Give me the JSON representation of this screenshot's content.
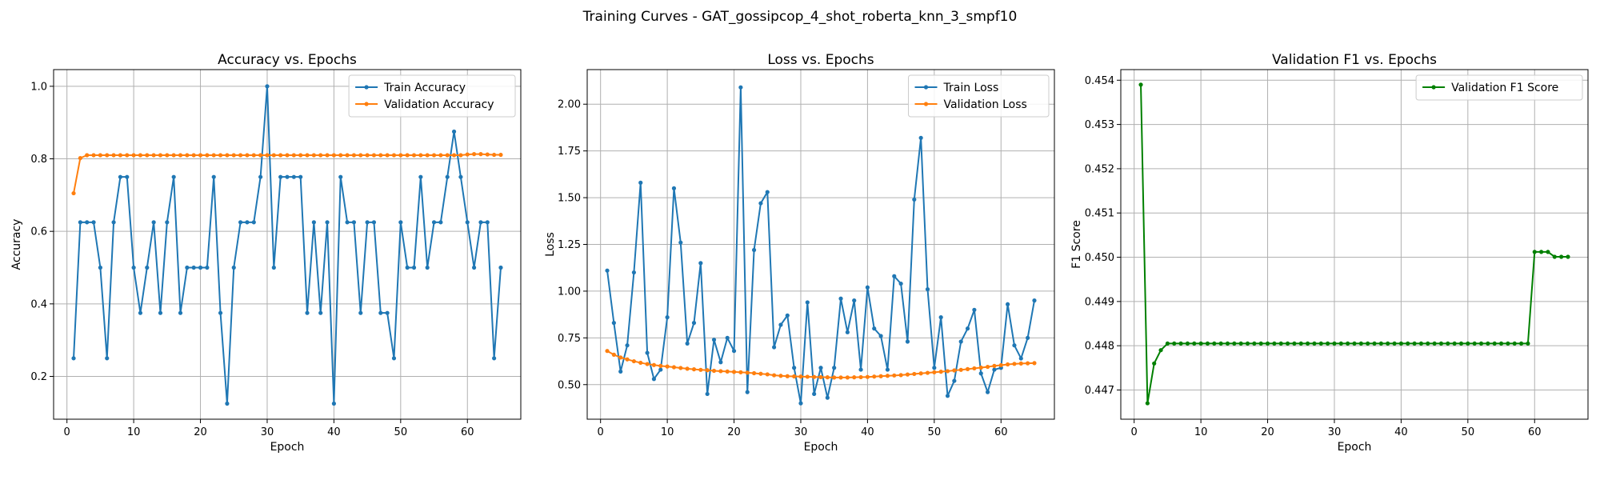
{
  "figure": {
    "title": "Training Curves - GAT_gossipcop_4_shot_roberta_knn_3_smpf10"
  },
  "chart_data": [
    {
      "type": "line",
      "title": "Accuracy vs. Epochs",
      "xlabel": "Epoch",
      "ylabel": "Accuracy",
      "xlim": [
        -2,
        68
      ],
      "ylim": [
        0.082,
        1.046
      ],
      "xticks": [
        0,
        10,
        20,
        30,
        40,
        50,
        60
      ],
      "yticks": [
        0.2,
        0.4,
        0.6,
        0.8,
        1.0
      ],
      "ytick_labels": [
        "0.2",
        "0.4",
        "0.6",
        "0.8",
        "1.0"
      ],
      "grid": true,
      "legend": "top-right",
      "series": [
        {
          "name": "Train Accuracy",
          "color": "#1f77b4",
          "x": [
            1,
            2,
            3,
            4,
            5,
            6,
            7,
            8,
            9,
            10,
            11,
            12,
            13,
            14,
            15,
            16,
            17,
            18,
            19,
            20,
            21,
            22,
            23,
            24,
            25,
            26,
            27,
            28,
            29,
            30,
            31,
            32,
            33,
            34,
            35,
            36,
            37,
            38,
            39,
            40,
            41,
            42,
            43,
            44,
            45,
            46,
            47,
            48,
            49,
            50,
            51,
            52,
            53,
            54,
            55,
            56,
            57,
            58,
            59,
            60,
            61,
            62,
            63,
            64,
            65
          ],
          "values": [
            0.25,
            0.625,
            0.625,
            0.625,
            0.5,
            0.25,
            0.625,
            0.75,
            0.75,
            0.5,
            0.375,
            0.5,
            0.625,
            0.375,
            0.625,
            0.75,
            0.375,
            0.5,
            0.5,
            0.5,
            0.5,
            0.75,
            0.375,
            0.125,
            0.5,
            0.625,
            0.625,
            0.625,
            0.75,
            1.0,
            0.5,
            0.75,
            0.75,
            0.75,
            0.75,
            0.375,
            0.625,
            0.375,
            0.625,
            0.125,
            0.75,
            0.625,
            0.625,
            0.375,
            0.625,
            0.625,
            0.375,
            0.375,
            0.25,
            0.625,
            0.5,
            0.5,
            0.75,
            0.5,
            0.625,
            0.625,
            0.75,
            0.875,
            0.75,
            0.625,
            0.5,
            0.625,
            0.625,
            0.25,
            0.5
          ]
        },
        {
          "name": "Validation Accuracy",
          "color": "#ff7f0e",
          "x": [
            1,
            2,
            3,
            4,
            5,
            6,
            7,
            8,
            9,
            10,
            11,
            12,
            13,
            14,
            15,
            16,
            17,
            18,
            19,
            20,
            21,
            22,
            23,
            24,
            25,
            26,
            27,
            28,
            29,
            30,
            31,
            32,
            33,
            34,
            35,
            36,
            37,
            38,
            39,
            40,
            41,
            42,
            43,
            44,
            45,
            46,
            47,
            48,
            49,
            50,
            51,
            52,
            53,
            54,
            55,
            56,
            57,
            58,
            59,
            60,
            61,
            62,
            63,
            64,
            65
          ],
          "values": [
            0.705,
            0.802,
            0.81,
            0.81,
            0.81,
            0.81,
            0.81,
            0.81,
            0.81,
            0.81,
            0.81,
            0.81,
            0.81,
            0.81,
            0.81,
            0.81,
            0.81,
            0.81,
            0.81,
            0.81,
            0.81,
            0.81,
            0.81,
            0.81,
            0.81,
            0.81,
            0.81,
            0.81,
            0.81,
            0.81,
            0.81,
            0.81,
            0.81,
            0.81,
            0.81,
            0.81,
            0.81,
            0.81,
            0.81,
            0.81,
            0.81,
            0.81,
            0.81,
            0.81,
            0.81,
            0.81,
            0.81,
            0.81,
            0.81,
            0.81,
            0.81,
            0.81,
            0.81,
            0.81,
            0.81,
            0.81,
            0.81,
            0.81,
            0.81,
            0.812,
            0.813,
            0.813,
            0.812,
            0.811,
            0.811
          ]
        }
      ]
    },
    {
      "type": "line",
      "title": "Loss vs. Epochs",
      "xlabel": "Epoch",
      "ylabel": "Loss",
      "xlim": [
        -2,
        68
      ],
      "ylim": [
        0.315,
        2.185
      ],
      "xticks": [
        0,
        10,
        20,
        30,
        40,
        50,
        60
      ],
      "yticks": [
        0.5,
        0.75,
        1.0,
        1.25,
        1.5,
        1.75,
        2.0
      ],
      "ytick_labels": [
        "0.50",
        "0.75",
        "1.00",
        "1.25",
        "1.50",
        "1.75",
        "2.00"
      ],
      "grid": true,
      "legend": "top-right",
      "series": [
        {
          "name": "Train Loss",
          "color": "#1f77b4",
          "x": [
            1,
            2,
            3,
            4,
            5,
            6,
            7,
            8,
            9,
            10,
            11,
            12,
            13,
            14,
            15,
            16,
            17,
            18,
            19,
            20,
            21,
            22,
            23,
            24,
            25,
            26,
            27,
            28,
            29,
            30,
            31,
            32,
            33,
            34,
            35,
            36,
            37,
            38,
            39,
            40,
            41,
            42,
            43,
            44,
            45,
            46,
            47,
            48,
            49,
            50,
            51,
            52,
            53,
            54,
            55,
            56,
            57,
            58,
            59,
            60,
            61,
            62,
            63,
            64,
            65
          ],
          "values": [
            1.11,
            0.83,
            0.57,
            0.71,
            1.1,
            1.58,
            0.67,
            0.53,
            0.58,
            0.86,
            1.55,
            1.26,
            0.72,
            0.83,
            1.15,
            0.45,
            0.74,
            0.62,
            0.75,
            0.68,
            2.09,
            0.46,
            1.22,
            1.47,
            1.53,
            0.7,
            0.82,
            0.87,
            0.59,
            0.4,
            0.94,
            0.45,
            0.59,
            0.43,
            0.59,
            0.96,
            0.78,
            0.95,
            0.58,
            1.02,
            0.8,
            0.76,
            0.58,
            1.08,
            1.04,
            0.73,
            1.49,
            1.82,
            1.01,
            0.59,
            0.86,
            0.44,
            0.52,
            0.73,
            0.8,
            0.9,
            0.56,
            0.46,
            0.58,
            0.59,
            0.93,
            0.71,
            0.64,
            0.75,
            0.95
          ]
        },
        {
          "name": "Validation Loss",
          "color": "#ff7f0e",
          "x": [
            1,
            2,
            3,
            4,
            5,
            6,
            7,
            8,
            9,
            10,
            11,
            12,
            13,
            14,
            15,
            16,
            17,
            18,
            19,
            20,
            21,
            22,
            23,
            24,
            25,
            26,
            27,
            28,
            29,
            30,
            31,
            32,
            33,
            34,
            35,
            36,
            37,
            38,
            39,
            40,
            41,
            42,
            43,
            44,
            45,
            46,
            47,
            48,
            49,
            50,
            51,
            52,
            53,
            54,
            55,
            56,
            57,
            58,
            59,
            60,
            61,
            62,
            63,
            64,
            65
          ],
          "values": [
            0.68,
            0.66,
            0.645,
            0.635,
            0.625,
            0.617,
            0.61,
            0.605,
            0.6,
            0.597,
            0.593,
            0.589,
            0.585,
            0.582,
            0.579,
            0.577,
            0.574,
            0.572,
            0.57,
            0.568,
            0.566,
            0.564,
            0.561,
            0.558,
            0.555,
            0.55,
            0.547,
            0.545,
            0.544,
            0.543,
            0.542,
            0.541,
            0.54,
            0.539,
            0.538,
            0.538,
            0.538,
            0.539,
            0.54,
            0.541,
            0.543,
            0.545,
            0.547,
            0.549,
            0.551,
            0.554,
            0.557,
            0.56,
            0.563,
            0.566,
            0.569,
            0.572,
            0.576,
            0.579,
            0.583,
            0.587,
            0.591,
            0.595,
            0.6,
            0.604,
            0.608,
            0.611,
            0.613,
            0.614,
            0.615
          ]
        }
      ]
    },
    {
      "type": "line",
      "title": "Validation F1 vs. Epochs",
      "xlabel": "Epoch",
      "ylabel": "F1 Score",
      "xlim": [
        -2,
        68
      ],
      "ylim": [
        0.44634,
        0.45424
      ],
      "xticks": [
        0,
        10,
        20,
        30,
        40,
        50,
        60
      ],
      "yticks": [
        0.447,
        0.448,
        0.449,
        0.45,
        0.451,
        0.452,
        0.453,
        0.454
      ],
      "ytick_labels": [
        "0.447",
        "0.448",
        "0.449",
        "0.450",
        "0.451",
        "0.452",
        "0.453",
        "0.454"
      ],
      "grid": true,
      "legend": "top-right",
      "series": [
        {
          "name": "Validation F1 Score",
          "color": "#008000",
          "x": [
            1,
            2,
            3,
            4,
            5,
            6,
            7,
            8,
            9,
            10,
            11,
            12,
            13,
            14,
            15,
            16,
            17,
            18,
            19,
            20,
            21,
            22,
            23,
            24,
            25,
            26,
            27,
            28,
            29,
            30,
            31,
            32,
            33,
            34,
            35,
            36,
            37,
            38,
            39,
            40,
            41,
            42,
            43,
            44,
            45,
            46,
            47,
            48,
            49,
            50,
            51,
            52,
            53,
            54,
            55,
            56,
            57,
            58,
            59,
            60,
            61,
            62,
            63,
            64,
            65
          ],
          "values": [
            0.4539,
            0.4467,
            0.4476,
            0.4479,
            0.44805,
            0.44805,
            0.44805,
            0.44805,
            0.44805,
            0.44805,
            0.44805,
            0.44805,
            0.44805,
            0.44805,
            0.44805,
            0.44805,
            0.44805,
            0.44805,
            0.44805,
            0.44805,
            0.44805,
            0.44805,
            0.44805,
            0.44805,
            0.44805,
            0.44805,
            0.44805,
            0.44805,
            0.44805,
            0.44805,
            0.44805,
            0.44805,
            0.44805,
            0.44805,
            0.44805,
            0.44805,
            0.44805,
            0.44805,
            0.44805,
            0.44805,
            0.44805,
            0.44805,
            0.44805,
            0.44805,
            0.44805,
            0.44805,
            0.44805,
            0.44805,
            0.44805,
            0.44805,
            0.44805,
            0.44805,
            0.44805,
            0.44805,
            0.44805,
            0.44805,
            0.44805,
            0.44805,
            0.44805,
            0.45012,
            0.45012,
            0.45012,
            0.45001,
            0.45001,
            0.45001
          ]
        }
      ]
    }
  ]
}
